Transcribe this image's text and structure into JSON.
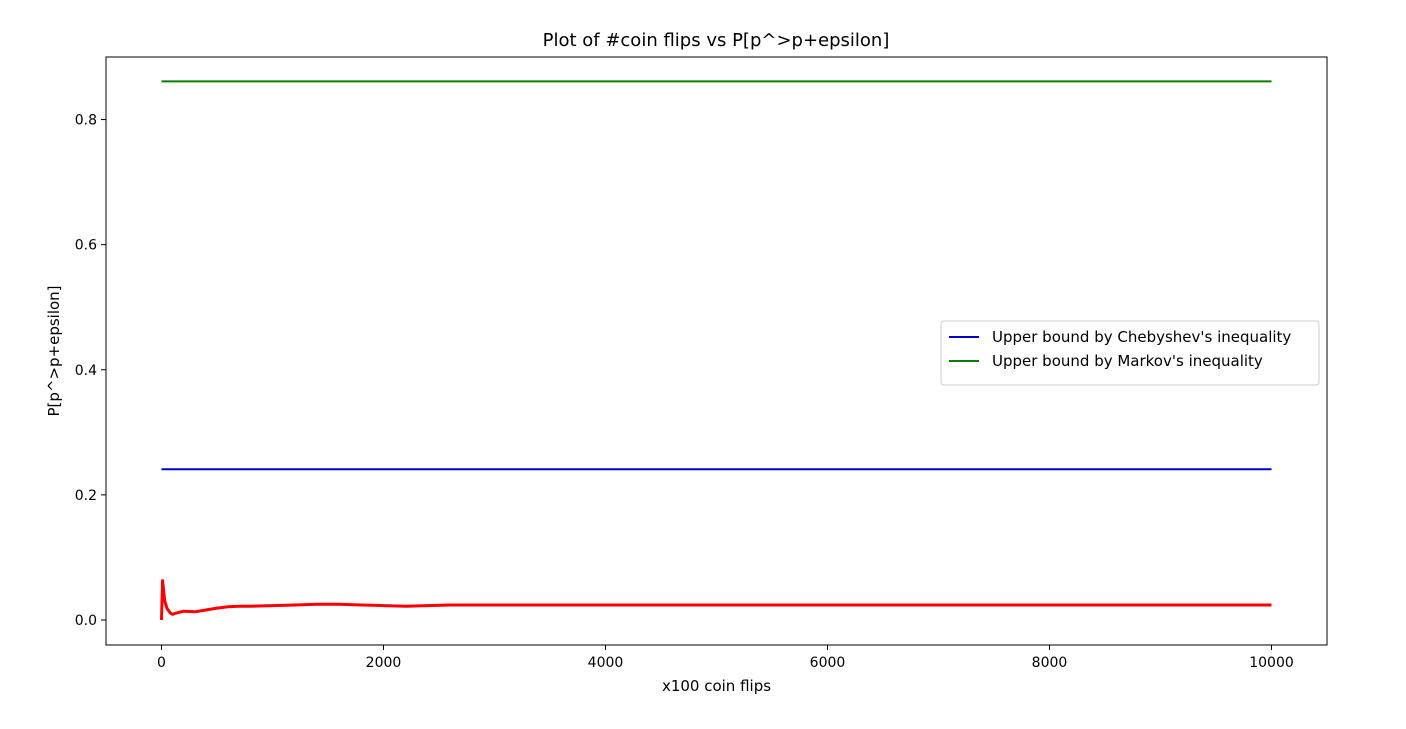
{
  "chart_data": {
    "type": "line",
    "title": "Plot of #coin flips vs P[p^>p+epsilon]",
    "xlabel": "x100 coin flips",
    "ylabel": "P[p^>p+epsilon]",
    "xlim": [
      -500,
      10500
    ],
    "ylim": [
      -0.04,
      0.9
    ],
    "xticks": [
      0,
      2000,
      4000,
      6000,
      8000,
      10000
    ],
    "xtick_labels": [
      "0",
      "2000",
      "4000",
      "6000",
      "8000",
      "10000"
    ],
    "yticks": [
      0.0,
      0.2,
      0.4,
      0.6,
      0.8
    ],
    "ytick_labels": [
      "0.0",
      "0.2",
      "0.4",
      "0.6",
      "0.8"
    ],
    "grid": false,
    "legend_position": "center-right",
    "series": [
      {
        "name": "Upper bound by Chebyshev's inequality",
        "color": "#0000cc",
        "in_legend": true,
        "x": [
          0,
          10000
        ],
        "y": [
          0.241,
          0.241
        ]
      },
      {
        "name": "Upper bound by Markov's inequality",
        "color": "#008000",
        "in_legend": true,
        "x": [
          0,
          10000
        ],
        "y": [
          0.861,
          0.861
        ]
      },
      {
        "color": "#ff0000",
        "in_legend": false,
        "x": [
          0,
          10,
          20,
          30,
          50,
          80,
          100,
          150,
          200,
          300,
          400,
          500,
          600,
          700,
          800,
          1000,
          1200,
          1400,
          1600,
          1800,
          2000,
          2200,
          2400,
          2600,
          3000,
          3500,
          4000,
          4500,
          5000,
          6000,
          7000,
          8000,
          9000,
          10000
        ],
        "y": [
          0.0,
          0.063,
          0.045,
          0.03,
          0.018,
          0.011,
          0.009,
          0.012,
          0.014,
          0.013,
          0.016,
          0.019,
          0.021,
          0.022,
          0.022,
          0.023,
          0.024,
          0.025,
          0.025,
          0.024,
          0.023,
          0.022,
          0.023,
          0.024,
          0.024,
          0.024,
          0.024,
          0.024,
          0.024,
          0.024,
          0.024,
          0.024,
          0.024,
          0.024
        ]
      }
    ]
  }
}
